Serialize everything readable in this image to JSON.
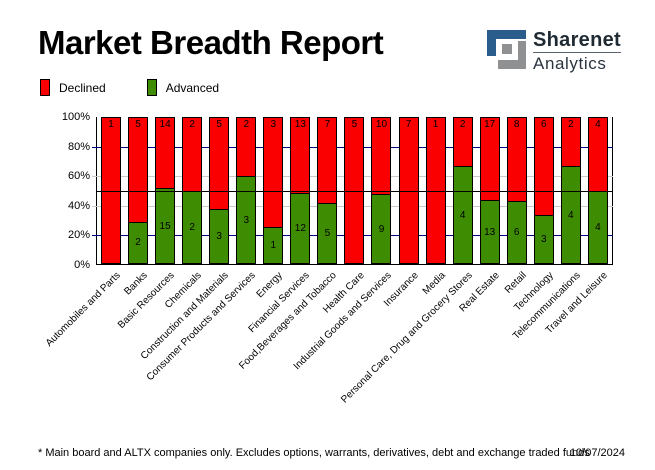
{
  "header": {
    "title": "Market Breadth Report",
    "logo": {
      "line1": "Sharenet",
      "line2": "Analytics"
    }
  },
  "legend": {
    "declined_label": "Declined",
    "advanced_label": "Advanced"
  },
  "chart_data": {
    "type": "bar",
    "stacked": true,
    "stack_mode": "percent-of-total",
    "title": "Market Breadth Report",
    "categories": [
      "Automobiles and Parts",
      "Banks",
      "Basic Resources",
      "Chemicals",
      "Construction and Materials",
      "Consumer Products and Services",
      "Energy",
      "Financial Services",
      "Food,Beverages and Tobacco",
      "Health Care",
      "Industrial Goods and Services",
      "Insurance",
      "Media",
      "Personal Care, Drug and Grocery Stores",
      "Real Estate",
      "Retail",
      "Technology",
      "Telecommunications",
      "Travel and Leisure"
    ],
    "series": [
      {
        "name": "Declined",
        "color": "#fa0000",
        "values": [
          1,
          5,
          14,
          2,
          5,
          2,
          3,
          13,
          7,
          5,
          10,
          7,
          1,
          2,
          17,
          8,
          6,
          2,
          4
        ]
      },
      {
        "name": "Advanced",
        "color": "#3e8c01",
        "values": [
          0,
          2,
          15,
          2,
          3,
          3,
          1,
          12,
          5,
          0,
          9,
          0,
          0,
          4,
          13,
          6,
          3,
          4,
          4
        ]
      }
    ],
    "ylabel": "",
    "xlabel": "",
    "ylim": [
      0,
      100
    ],
    "y_ticks": [
      "0%",
      "20%",
      "40%",
      "60%",
      "80%",
      "100%"
    ],
    "gridlines": [
      {
        "percent": 80,
        "color": "#000080"
      },
      {
        "percent": 60,
        "color": "#c9c9c9"
      },
      {
        "percent": 50,
        "color": "#000000",
        "front": true
      },
      {
        "percent": 40,
        "color": "#c9c9c9"
      },
      {
        "percent": 20,
        "color": "#000080"
      }
    ],
    "legend_position": "top-left",
    "bar_value_labels": "counts shown inside segments"
  },
  "colors": {
    "declined": "#fa0000",
    "advanced": "#3e8c01",
    "grid_navy": "#000080",
    "grid_gray": "#c9c9c9",
    "logo_blue": "#2b5d8c",
    "logo_gray": "#8e9092"
  },
  "footer": {
    "note": "* Main board and ALTX companies only. Excludes options, warrants, derivatives, debt and exchange traded funds",
    "date": "10/07/2024"
  }
}
